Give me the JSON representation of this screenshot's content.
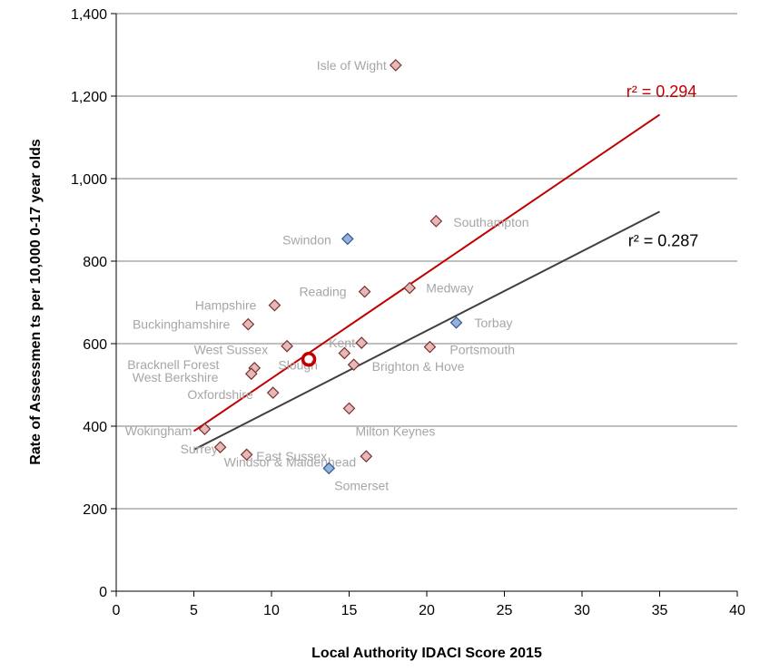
{
  "chart_data": {
    "type": "scatter",
    "title": "",
    "xlabel": "Local Authority IDACI Score 2015",
    "ylabel": "Rate of Assessmen ts per 10,000 0-17 year olds",
    "xlim": [
      0,
      40
    ],
    "ylim": [
      0,
      1400
    ],
    "x_ticks": [
      0,
      5,
      10,
      15,
      20,
      25,
      30,
      35,
      40
    ],
    "y_ticks": [
      0,
      200,
      400,
      600,
      800,
      1000,
      1200,
      1400
    ],
    "y_tick_labels": [
      "0",
      "200",
      "400",
      "600",
      "800",
      "1,000",
      "1,200",
      "1,400"
    ],
    "grid": "horizontal",
    "points": [
      {
        "name": "Isle of Wight",
        "x": 18.0,
        "y": 1275,
        "group": "se"
      },
      {
        "name": "Southampton",
        "x": 20.6,
        "y": 897,
        "group": "se"
      },
      {
        "name": "Swindon",
        "x": 14.9,
        "y": 854,
        "group": "sw"
      },
      {
        "name": "Reading",
        "x": 16.0,
        "y": 726,
        "group": "se"
      },
      {
        "name": "Medway",
        "x": 18.9,
        "y": 735,
        "group": "se"
      },
      {
        "name": "Hampshire",
        "x": 10.2,
        "y": 693,
        "group": "se"
      },
      {
        "name": "Torbay",
        "x": 21.9,
        "y": 651,
        "group": "sw"
      },
      {
        "name": "Buckinghamshire",
        "x": 8.5,
        "y": 647,
        "group": "se"
      },
      {
        "name": "West Sussex",
        "x": 11.0,
        "y": 594,
        "group": "se"
      },
      {
        "name": "Kent",
        "x": 15.8,
        "y": 602,
        "group": "se"
      },
      {
        "name": "Portsmouth",
        "x": 20.2,
        "y": 592,
        "group": "se"
      },
      {
        "name": "Slough",
        "x": 14.7,
        "y": 577,
        "group": "se"
      },
      {
        "name": "Brighton & Hove",
        "x": 15.3,
        "y": 549,
        "group": "se"
      },
      {
        "name": "Bracknell Forest",
        "x": 8.9,
        "y": 541,
        "group": "se"
      },
      {
        "name": "West Berkshire",
        "x": 8.7,
        "y": 527,
        "group": "se"
      },
      {
        "name": "Oxfordshire",
        "x": 10.1,
        "y": 481,
        "group": "se"
      },
      {
        "name": "Milton Keynes",
        "x": 15.0,
        "y": 443,
        "group": "se"
      },
      {
        "name": "Wokingham",
        "x": 5.7,
        "y": 393,
        "group": "se"
      },
      {
        "name": "Surrey",
        "x": 6.7,
        "y": 349,
        "group": "se"
      },
      {
        "name": "Windsor & Maidenhead",
        "x": 8.4,
        "y": 331,
        "group": "se"
      },
      {
        "name": "East Sussex",
        "x": 16.1,
        "y": 327,
        "group": "se"
      },
      {
        "name": "Somerset",
        "x": 13.7,
        "y": 298,
        "group": "sw"
      },
      {
        "name": "",
        "x": 12.4,
        "y": 562,
        "group": "highlight"
      }
    ],
    "trendlines": [
      {
        "label": "r² = 0.294",
        "x": [
          5,
          35
        ],
        "y": [
          388,
          1155
        ],
        "color": "#c00000"
      },
      {
        "label": "r² = 0.287",
        "x": [
          5,
          35
        ],
        "y": [
          343,
          920
        ],
        "color": "#404040"
      }
    ],
    "colors": {
      "se_fill": "#e6b9b8",
      "se_stroke": "#7a3030",
      "sw_fill": "#95b3d7",
      "sw_stroke": "#2f5597",
      "highlight": "#c00000"
    }
  }
}
